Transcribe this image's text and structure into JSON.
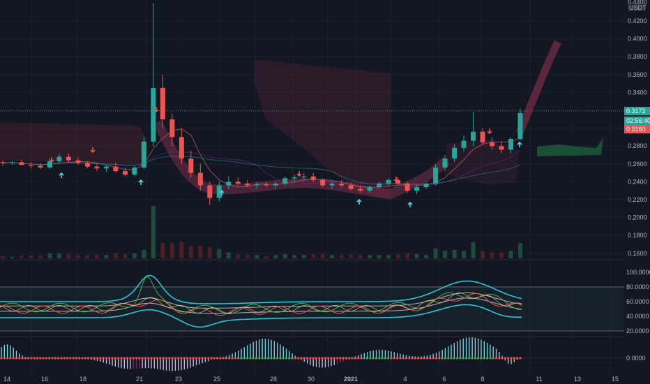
{
  "header": {
    "currency": "USDT"
  },
  "axes": {
    "price_ticks": [
      "0.4200",
      "0.4000",
      "0.3800",
      "0.3600",
      "0.3400",
      "0.2800",
      "0.2600",
      "0.2400",
      "0.2200",
      "0.2000",
      "0.1800",
      "0.1600"
    ],
    "price_partial_top": "0.4400",
    "stoch_ticks": [
      "100.0000",
      "80.0000",
      "60.0000",
      "40.0000",
      "20.0000"
    ],
    "macd_ticks": [
      "0.0000"
    ],
    "time_ticks": [
      "14",
      "16",
      "18",
      "21",
      "23",
      "25",
      "28",
      "30",
      "2021",
      "4",
      "6",
      "8",
      "11",
      "13",
      "15"
    ]
  },
  "labels": {
    "last_price": "0.3172",
    "countdown": "02:56:40",
    "prev_close": "0.3160"
  },
  "colors": {
    "background": "#131722",
    "up": "#26a69a",
    "down": "#ef5350",
    "cyan_band": "#26c6da",
    "signal_up": "#4dd0e1",
    "signal_down": "#ef5350",
    "grid": "#1e222d"
  },
  "chart_data": {
    "type": "candlestick",
    "price_axis": {
      "ylim": [
        0.15,
        0.44
      ],
      "scale": "linear"
    },
    "time_axis": {
      "range_days": [
        "14",
        "15"
      ],
      "year_marker": "2021"
    },
    "candles_ohlc_approx": [
      [
        0.262,
        0.264,
        0.258,
        0.261
      ],
      [
        0.261,
        0.263,
        0.259,
        0.262
      ],
      [
        0.262,
        0.265,
        0.258,
        0.259
      ],
      [
        0.259,
        0.262,
        0.255,
        0.258
      ],
      [
        0.258,
        0.261,
        0.254,
        0.256
      ],
      [
        0.256,
        0.266,
        0.254,
        0.263
      ],
      [
        0.263,
        0.271,
        0.26,
        0.268
      ],
      [
        0.268,
        0.272,
        0.262,
        0.264
      ],
      [
        0.264,
        0.267,
        0.259,
        0.261
      ],
      [
        0.261,
        0.263,
        0.255,
        0.257
      ],
      [
        0.257,
        0.26,
        0.252,
        0.255
      ],
      [
        0.255,
        0.259,
        0.251,
        0.257
      ],
      [
        0.257,
        0.262,
        0.25,
        0.252
      ],
      [
        0.252,
        0.256,
        0.246,
        0.248
      ],
      [
        0.248,
        0.258,
        0.246,
        0.256
      ],
      [
        0.256,
        0.29,
        0.254,
        0.285
      ],
      [
        0.285,
        0.44,
        0.28,
        0.345
      ],
      [
        0.345,
        0.36,
        0.3,
        0.31
      ],
      [
        0.31,
        0.316,
        0.28,
        0.29
      ],
      [
        0.29,
        0.3,
        0.26,
        0.266
      ],
      [
        0.266,
        0.275,
        0.245,
        0.25
      ],
      [
        0.25,
        0.26,
        0.23,
        0.236
      ],
      [
        0.236,
        0.24,
        0.214,
        0.222
      ],
      [
        0.222,
        0.24,
        0.218,
        0.236
      ],
      [
        0.236,
        0.246,
        0.232,
        0.24
      ],
      [
        0.24,
        0.245,
        0.236,
        0.238
      ],
      [
        0.238,
        0.242,
        0.234,
        0.236
      ],
      [
        0.236,
        0.24,
        0.232,
        0.237
      ],
      [
        0.237,
        0.24,
        0.234,
        0.236
      ],
      [
        0.236,
        0.24,
        0.232,
        0.238
      ],
      [
        0.238,
        0.246,
        0.236,
        0.244
      ],
      [
        0.244,
        0.248,
        0.24,
        0.245
      ],
      [
        0.245,
        0.25,
        0.242,
        0.246
      ],
      [
        0.246,
        0.25,
        0.24,
        0.242
      ],
      [
        0.242,
        0.244,
        0.234,
        0.236
      ],
      [
        0.236,
        0.24,
        0.232,
        0.238
      ],
      [
        0.238,
        0.242,
        0.234,
        0.236
      ],
      [
        0.236,
        0.239,
        0.23,
        0.232
      ],
      [
        0.232,
        0.236,
        0.228,
        0.23
      ],
      [
        0.23,
        0.236,
        0.228,
        0.234
      ],
      [
        0.234,
        0.24,
        0.232,
        0.238
      ],
      [
        0.238,
        0.244,
        0.236,
        0.242
      ],
      [
        0.242,
        0.245,
        0.236,
        0.238
      ],
      [
        0.238,
        0.24,
        0.228,
        0.23
      ],
      [
        0.23,
        0.236,
        0.226,
        0.234
      ],
      [
        0.234,
        0.24,
        0.232,
        0.238
      ],
      [
        0.238,
        0.26,
        0.236,
        0.256
      ],
      [
        0.256,
        0.27,
        0.252,
        0.266
      ],
      [
        0.266,
        0.282,
        0.262,
        0.278
      ],
      [
        0.278,
        0.292,
        0.274,
        0.286
      ],
      [
        0.286,
        0.318,
        0.28,
        0.296
      ],
      [
        0.296,
        0.3,
        0.282,
        0.284
      ],
      [
        0.284,
        0.29,
        0.276,
        0.28
      ],
      [
        0.28,
        0.286,
        0.272,
        0.276
      ],
      [
        0.276,
        0.29,
        0.272,
        0.288
      ],
      [
        0.288,
        0.322,
        0.286,
        0.317
      ]
    ],
    "oscillator": {
      "ylim": [
        0,
        100
      ],
      "levels": [
        80,
        20
      ]
    },
    "macd_histogram": {
      "zero_line": 0
    }
  }
}
